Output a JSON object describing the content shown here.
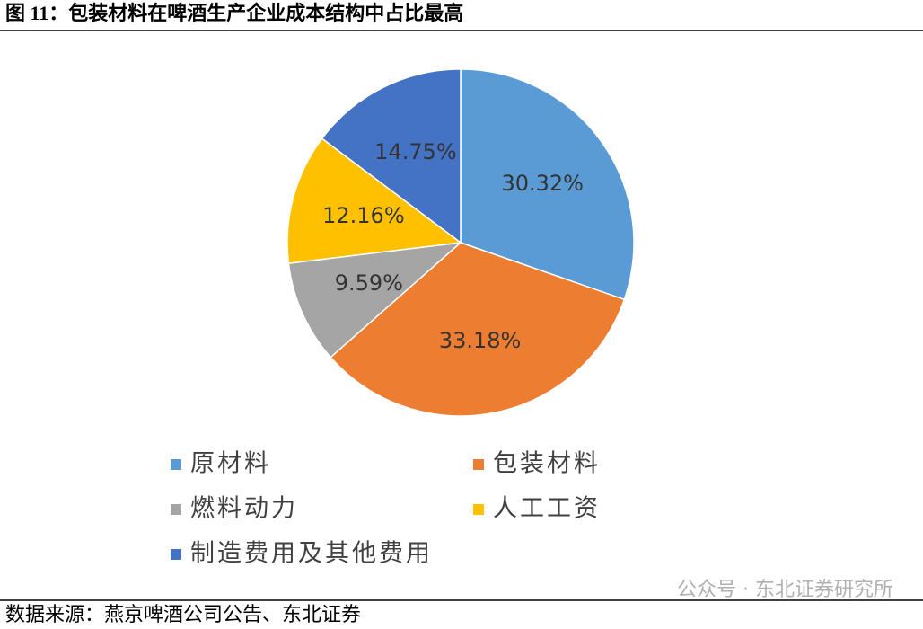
{
  "chart_data": {
    "type": "pie",
    "title": "图 11：包装材料在啤酒生产企业成本结构中占比最高",
    "source": "数据来源：燕京啤酒公司公告、东北证券",
    "watermark": "公众号 · 东北证券研究所",
    "categories": [
      "原材料",
      "包装材料",
      "燃料动力",
      "人工工资",
      "制造费用及其他费用"
    ],
    "values": [
      30.32,
      33.18,
      9.59,
      12.16,
      14.75
    ],
    "value_labels": [
      "30.32%",
      "33.18%",
      "9.59%",
      "12.16%",
      "14.75%"
    ],
    "colors": [
      "#5b9bd5",
      "#ed7d31",
      "#a5a5a5",
      "#ffc000",
      "#4472c4"
    ],
    "legend": "bottom"
  }
}
